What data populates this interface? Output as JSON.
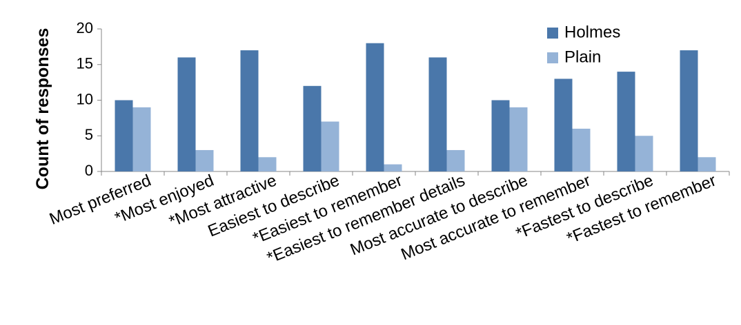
{
  "chart_data": {
    "type": "bar",
    "y_label": "Count of responses",
    "categories": [
      "Most preferred",
      "*Most enjoyed",
      "*Most attractive",
      "Easiest to describe",
      "*Easiest to remember",
      "*Easiest to remember details",
      "Most accurate to describe",
      "Most accurate to remember",
      "*Fastest to describe",
      "*Fastest to remember"
    ],
    "series": [
      {
        "name": "Holmes",
        "color": "#4a77aa",
        "values": [
          10,
          16,
          17,
          12,
          18,
          16,
          10,
          13,
          14,
          17
        ]
      },
      {
        "name": "Plain",
        "color": "#95b3d7",
        "values": [
          9,
          3,
          2,
          7,
          1,
          3,
          9,
          6,
          5,
          2
        ]
      }
    ],
    "ylim": [
      0,
      20
    ],
    "yticks": [
      0,
      5,
      10,
      15,
      20
    ],
    "legend": "upper right"
  }
}
